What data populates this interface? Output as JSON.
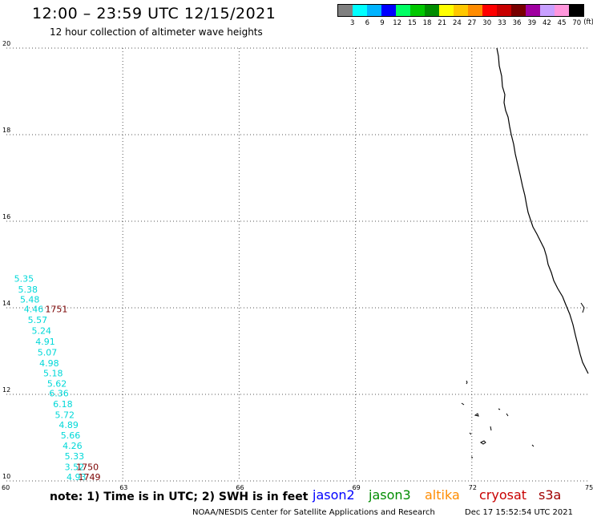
{
  "header": {
    "title": "12:00 – 23:59 UTC 12/15/2021",
    "subtitle": "12 hour collection of altimeter wave heights"
  },
  "legend": {
    "colors": [
      "#808080",
      "#00ffff",
      "#00b4ff",
      "#0000ff",
      "#00ff64",
      "#00c800",
      "#008c00",
      "#ffff00",
      "#ffc800",
      "#ff8c00",
      "#ff0000",
      "#c80000",
      "#780000",
      "#a000a0",
      "#c8a0ff",
      "#ff96dc",
      "#000000"
    ],
    "labels": [
      "3",
      "6",
      "9",
      "12",
      "15",
      "18",
      "21",
      "24",
      "27",
      "30",
      "33",
      "36",
      "39",
      "42",
      "45",
      "70"
    ],
    "unit": "(ft)"
  },
  "map": {
    "x_range": [
      60,
      75
    ],
    "y_range": [
      10,
      20
    ],
    "x_ticks": [
      "60",
      "63",
      "66",
      "69",
      "72",
      "75"
    ],
    "y_ticks": [
      "20",
      "18",
      "16",
      "14",
      "12",
      "10"
    ],
    "wave_heights": [
      {
        "value": "5.35",
        "lon": 60.2,
        "lat": 14.6
      },
      {
        "value": "5.38",
        "lon": 60.3,
        "lat": 14.35
      },
      {
        "value": "5.48",
        "lon": 60.35,
        "lat": 14.12
      },
      {
        "value": "4.46",
        "lon": 60.45,
        "lat": 13.9
      },
      {
        "value": "5.57",
        "lon": 60.55,
        "lat": 13.65
      },
      {
        "value": "5.24",
        "lon": 60.65,
        "lat": 13.4
      },
      {
        "value": "4.91",
        "lon": 60.75,
        "lat": 13.15
      },
      {
        "value": "5.07",
        "lon": 60.8,
        "lat": 12.9
      },
      {
        "value": "4.98",
        "lon": 60.85,
        "lat": 12.65
      },
      {
        "value": "5.18",
        "lon": 60.95,
        "lat": 12.42
      },
      {
        "value": "5.62",
        "lon": 61.05,
        "lat": 12.18
      },
      {
        "value": "6.36",
        "lon": 61.1,
        "lat": 11.95
      },
      {
        "value": "6.18",
        "lon": 61.2,
        "lat": 11.7
      },
      {
        "value": "5.72",
        "lon": 61.25,
        "lat": 11.45
      },
      {
        "value": "4.89",
        "lon": 61.35,
        "lat": 11.22
      },
      {
        "value": "5.66",
        "lon": 61.4,
        "lat": 10.98
      },
      {
        "value": "4.26",
        "lon": 61.45,
        "lat": 10.74
      },
      {
        "value": "5.33",
        "lon": 61.5,
        "lat": 10.5
      },
      {
        "value": "3.52",
        "lon": 61.5,
        "lat": 10.25
      },
      {
        "value": "4.93",
        "lon": 61.55,
        "lat": 10.02
      }
    ],
    "times": [
      {
        "value": "1751",
        "lon": 61.0,
        "lat": 13.9
      },
      {
        "value": "1750",
        "lon": 61.8,
        "lat": 10.25
      },
      {
        "value": "1749",
        "lon": 61.85,
        "lat": 10.02
      }
    ],
    "wave_color": "#00d8d8",
    "time_color": "#7a0000"
  },
  "footer": {
    "note": "note: 1) Time is in UTC; 2) SWH is in feet",
    "satellites": [
      {
        "name": "jason2",
        "color": "#0000ff"
      },
      {
        "name": "jason3",
        "color": "#008c00"
      },
      {
        "name": "altika",
        "color": "#ff8c00"
      },
      {
        "name": "cryosat",
        "color": "#c80000"
      },
      {
        "name": "s3a",
        "color": "#a00000"
      }
    ],
    "credit": "NOAA/NESDIS Center for Satellite Applications and Research",
    "timestamp": "Dec 17 15:52:54 UTC 2021"
  }
}
